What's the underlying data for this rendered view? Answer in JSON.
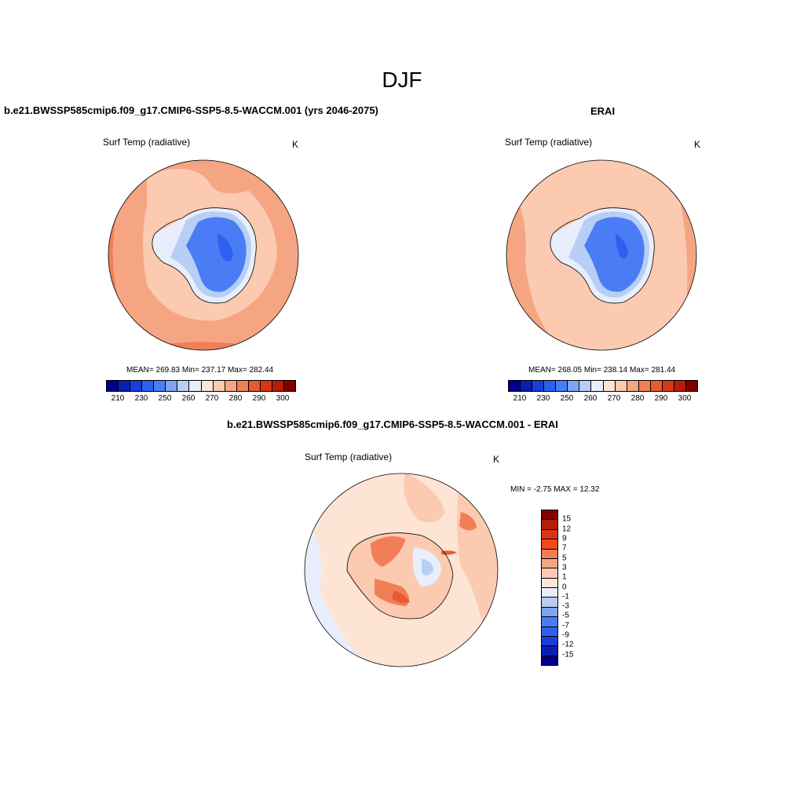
{
  "figure": {
    "title": "DJF",
    "panel_a": {
      "title": "b.e21.BWSSP585cmip6.f09_g17.CMIP6-SSP5-8.5-WACCM.001 (yrs 2046-2075)",
      "variable": "Surf Temp (radiative)",
      "units": "K",
      "stats": "MEAN= 269.83  Min= 237.17  Max= 282.44"
    },
    "panel_b": {
      "title": "ERAI",
      "variable": "Surf Temp (radiative)",
      "units": "K",
      "stats": "MEAN= 268.05  Min= 238.14  Max= 281.44"
    },
    "panel_c": {
      "title": "b.e21.BWSSP585cmip6.f09_g17.CMIP6-SSP5-8.5-WACCM.001 - ERAI",
      "variable": "Surf Temp (radiative)",
      "units": "K",
      "stats": "MIN =  -2.75 MAX =  12.32"
    }
  },
  "colorbar_abs": {
    "colors": [
      "#00008b",
      "#0a1fb0",
      "#1a3fd8",
      "#2f5ff0",
      "#4a7df5",
      "#7ea4f2",
      "#b7cff5",
      "#e8eefb",
      "#fde4d4",
      "#fbcab0",
      "#f6a582",
      "#f07f58",
      "#e85a32",
      "#d83616",
      "#b81c07",
      "#800000"
    ],
    "tick_labels": [
      "210",
      "230",
      "250",
      "260",
      "270",
      "280",
      "290",
      "300"
    ]
  },
  "colorbar_diff": {
    "colors": [
      "#800000",
      "#b81c07",
      "#d83616",
      "#f04a1c",
      "#f07f58",
      "#f6a582",
      "#fbcab0",
      "#fde4d4",
      "#e8eefb",
      "#b7cff5",
      "#7ea4f2",
      "#4a7df5",
      "#2f5ff0",
      "#1a3fd8",
      "#0a1fb0",
      "#00008b"
    ],
    "tick_labels": [
      "15",
      "12",
      "9",
      "7",
      "5",
      "3",
      "1",
      "0",
      "-1",
      "-3",
      "-5",
      "-7",
      "-9",
      "-12",
      "-15"
    ]
  }
}
